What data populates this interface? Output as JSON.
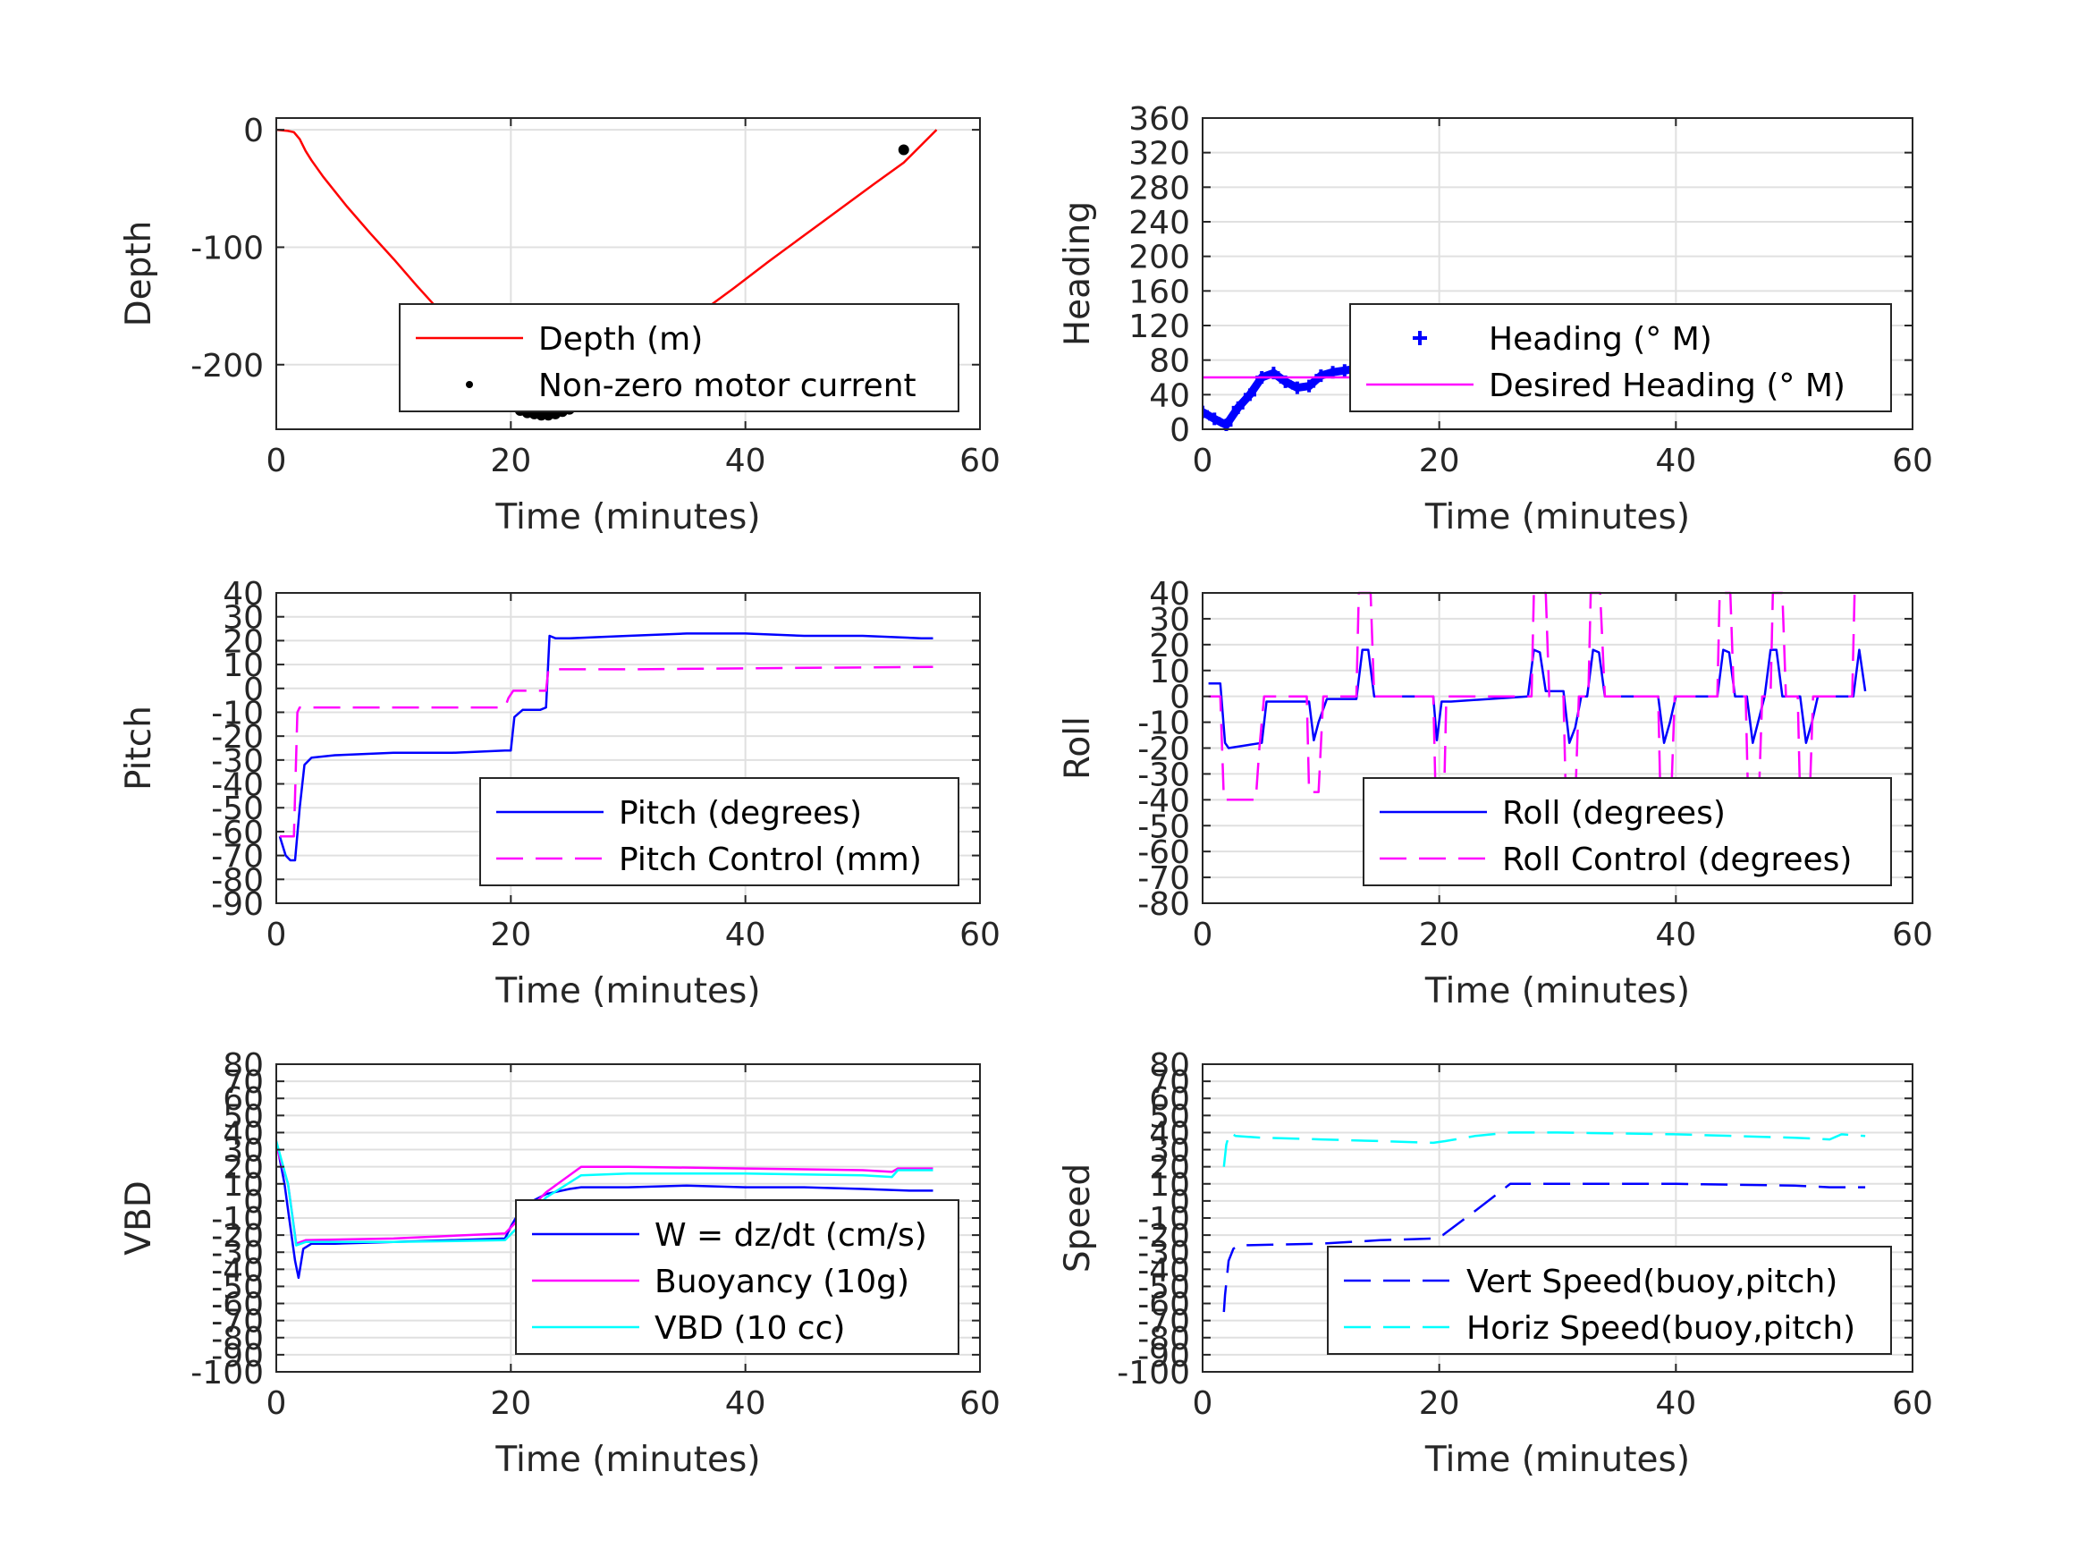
{
  "chart_data": [
    {
      "type": "line",
      "xlabel": "Time (minutes)",
      "ylabel": "Depth",
      "xlim": [
        0,
        60
      ],
      "ylim": [
        -255,
        10
      ],
      "xticks": [
        "0",
        "20",
        "40",
        "60"
      ],
      "yticks": [
        "0",
        "-100",
        "-200"
      ],
      "ytick_values": [
        0,
        -100,
        -200
      ],
      "grid": true,
      "legend_position": "bottom-right",
      "series": [
        {
          "name": "Depth (m)",
          "color": "#ff0000",
          "style": "solid",
          "x": [
            0,
            1.0,
            1.5,
            2.0,
            2.5,
            3.0,
            4.0,
            6.0,
            8.0,
            10.0,
            12.0,
            14.0,
            16.0,
            18.0,
            19.5,
            20.0,
            21.0,
            22.0,
            22.8,
            23.5,
            24.5,
            25.5,
            26.5,
            28.0,
            30.0,
            33.0,
            36.0,
            39.0,
            42.0,
            45.0,
            48.0,
            51.0,
            53.5,
            56.3
          ],
          "y": [
            0,
            -1,
            -2,
            -8,
            -18,
            -26,
            -40,
            -65,
            -88,
            -110,
            -133,
            -155,
            -177,
            -200,
            -217,
            -222,
            -232,
            -238,
            -240,
            -239,
            -236,
            -232,
            -226,
            -217,
            -202,
            -180,
            -157,
            -135,
            -112,
            -90,
            -68,
            -46,
            -28,
            0
          ]
        },
        {
          "name": "Non-zero motor current",
          "color": "#000000",
          "style": "markers",
          "x": [
            20.2,
            20.8,
            21.4,
            22.0,
            22.6,
            23.2,
            23.8,
            24.4,
            25.0,
            25.6,
            53.5
          ],
          "y": [
            -236,
            -239,
            -241,
            -242,
            -243,
            -243,
            -242,
            -240,
            -238,
            -235,
            -17
          ]
        }
      ]
    },
    {
      "type": "line",
      "xlabel": "Time (minutes)",
      "ylabel": "Heading",
      "xlim": [
        0,
        60
      ],
      "ylim": [
        0,
        360
      ],
      "xticks": [
        "0",
        "20",
        "40",
        "60"
      ],
      "yticks": [
        "0",
        "40",
        "80",
        "120",
        "160",
        "200",
        "240",
        "280",
        "320",
        "360"
      ],
      "ytick_values": [
        0,
        40,
        80,
        120,
        160,
        200,
        240,
        280,
        320,
        360
      ],
      "grid": true,
      "legend_position": "bottom-right",
      "series": [
        {
          "name": "Heading (° M)",
          "color": "#0000ff",
          "style": "markers",
          "x": [
            0,
            1,
            2,
            3,
            4,
            5,
            6,
            7,
            8,
            9,
            10,
            11,
            12,
            13,
            14,
            15,
            16,
            17,
            18,
            19,
            20,
            21,
            22,
            23,
            24,
            25,
            26,
            27,
            28,
            29,
            30,
            31,
            32,
            33,
            34,
            35,
            36,
            37,
            38,
            39,
            40,
            41,
            42,
            43,
            44,
            45,
            46,
            47,
            48,
            49,
            50,
            51,
            52,
            53,
            54,
            55,
            56
          ],
          "y": [
            20,
            12,
            5,
            25,
            40,
            60,
            65,
            55,
            48,
            50,
            62,
            66,
            68,
            70,
            62,
            55,
            50,
            48,
            46,
            48,
            52,
            58,
            64,
            68,
            62,
            55,
            50,
            54,
            60,
            66,
            70,
            72,
            62,
            52,
            48,
            56,
            65,
            72,
            60,
            48,
            42,
            58,
            72,
            76,
            50,
            36,
            55,
            78,
            80,
            60,
            46,
            56,
            70,
            65,
            45,
            60,
            75
          ]
        },
        {
          "name": "Desired Heading (° M)",
          "color": "#ff00ff",
          "style": "solid",
          "x": [
            0,
            56
          ],
          "y": [
            60,
            60
          ]
        }
      ]
    },
    {
      "type": "line",
      "xlabel": "Time (minutes)",
      "ylabel": "Pitch",
      "xlim": [
        0,
        60
      ],
      "ylim": [
        -90,
        40
      ],
      "xticks": [
        "0",
        "20",
        "40",
        "60"
      ],
      "yticks": [
        "-90",
        "-80",
        "-70",
        "-60",
        "-50",
        "-40",
        "-30",
        "-20",
        "-10",
        "0",
        "10",
        "20",
        "30",
        "40"
      ],
      "ytick_values": [
        -90,
        -80,
        -70,
        -60,
        -50,
        -40,
        -30,
        -20,
        -10,
        0,
        10,
        20,
        30,
        40
      ],
      "grid": true,
      "legend_position": "bottom-right",
      "series": [
        {
          "name": "Pitch (degrees)",
          "color": "#0000ff",
          "style": "solid",
          "x": [
            0.3,
            0.8,
            1.2,
            1.6,
            2.0,
            2.4,
            3.0,
            5.0,
            10.0,
            15.0,
            19.5,
            20.0,
            20.3,
            21.0,
            22.5,
            23.0,
            23.3,
            23.8,
            25.0,
            30.0,
            35.0,
            40.0,
            45.0,
            50.0,
            55.0,
            56.0
          ],
          "y": [
            -62,
            -70,
            -72,
            -72,
            -50,
            -32,
            -29,
            -28,
            -27,
            -27,
            -26,
            -26,
            -12,
            -9,
            -9,
            -8,
            22,
            21,
            21,
            22,
            23,
            23,
            22,
            22,
            21,
            21
          ]
        },
        {
          "name": "Pitch Control (mm)",
          "color": "#ff00ff",
          "style": "dashed",
          "x": [
            0.3,
            1.5,
            1.6,
            1.8,
            2.0,
            19.5,
            19.8,
            20.2,
            23.0,
            23.2,
            30.0,
            56.0
          ],
          "y": [
            -62,
            -62,
            -45,
            -10,
            -8,
            -8,
            -4,
            -1,
            -1,
            8,
            8,
            9
          ]
        }
      ]
    },
    {
      "type": "line",
      "xlabel": "Time (minutes)",
      "ylabel": "Roll",
      "xlim": [
        0,
        60
      ],
      "ylim": [
        -80,
        40
      ],
      "xticks": [
        "0",
        "20",
        "40",
        "60"
      ],
      "yticks": [
        "-80",
        "-70",
        "-60",
        "-50",
        "-40",
        "-30",
        "-20",
        "-10",
        "0",
        "10",
        "20",
        "30",
        "40"
      ],
      "ytick_values": [
        -80,
        -70,
        -60,
        -50,
        -40,
        -30,
        -20,
        -10,
        0,
        10,
        20,
        30,
        40
      ],
      "grid": true,
      "legend_position": "bottom-right",
      "series": [
        {
          "name": "Roll (degrees)",
          "color": "#0000ff",
          "style": "solid",
          "x": [
            0.5,
            1.5,
            1.9,
            2.2,
            5.0,
            5.4,
            6.0,
            9.0,
            9.4,
            9.8,
            10.5,
            13.0,
            13.5,
            14.0,
            14.5,
            19.5,
            19.8,
            20.2,
            21.0,
            27.5,
            28.0,
            28.5,
            29.0,
            30.5,
            31.0,
            31.5,
            32.0,
            32.5,
            33.0,
            33.5,
            34.0,
            38.5,
            39.0,
            39.5,
            40.0,
            43.5,
            44.0,
            44.5,
            45.0,
            46.0,
            46.5,
            47.5,
            48.0,
            48.5,
            49.0,
            50.5,
            51.0,
            51.5,
            52.0,
            55.0,
            55.5,
            56.0
          ],
          "y": [
            5,
            5,
            -18,
            -20,
            -18,
            -2,
            -2,
            -2,
            -17,
            -10,
            -1,
            -1,
            18,
            18,
            0,
            0,
            -17,
            -2,
            -2,
            0,
            18,
            17,
            2,
            2,
            -18,
            -12,
            0,
            0,
            18,
            17,
            0,
            0,
            -18,
            -10,
            0,
            0,
            18,
            17,
            0,
            0,
            -18,
            0,
            18,
            18,
            0,
            0,
            -18,
            -10,
            0,
            0,
            18,
            2
          ]
        },
        {
          "name": "Roll Control (degrees)",
          "color": "#ff00ff",
          "style": "dashed",
          "x": [
            0.5,
            1.5,
            1.8,
            4.5,
            4.8,
            5.2,
            8.8,
            9.0,
            9.8,
            10.2,
            13.0,
            13.2,
            14.2,
            14.5,
            19.5,
            19.7,
            20.4,
            20.6,
            27.8,
            28.0,
            29.0,
            29.3,
            30.5,
            30.7,
            31.5,
            31.8,
            32.6,
            32.8,
            33.6,
            34.0,
            38.5,
            38.7,
            39.6,
            39.9,
            43.5,
            43.7,
            44.6,
            44.9,
            45.9,
            46.1,
            47.0,
            47.3,
            48.0,
            48.2,
            49.0,
            49.3,
            50.3,
            50.5,
            51.3,
            51.6,
            54.9,
            55.1,
            56.0
          ],
          "y": [
            0,
            0,
            -40,
            -40,
            -20,
            0,
            0,
            -37,
            -37,
            0,
            0,
            40,
            40,
            0,
            0,
            -40,
            -40,
            0,
            0,
            40,
            40,
            0,
            0,
            -40,
            -40,
            0,
            0,
            40,
            40,
            0,
            0,
            -40,
            -40,
            0,
            0,
            40,
            40,
            0,
            0,
            -40,
            -40,
            0,
            0,
            40,
            40,
            0,
            0,
            -40,
            -40,
            0,
            0,
            40,
            40
          ]
        }
      ]
    },
    {
      "type": "line",
      "xlabel": "Time (minutes)",
      "ylabel": "VBD",
      "xlim": [
        0,
        60
      ],
      "ylim": [
        -100,
        80
      ],
      "xticks": [
        "0",
        "20",
        "40",
        "60"
      ],
      "yticks": [
        "-100",
        "-90",
        "-80",
        "-70",
        "-60",
        "-50",
        "-40",
        "-30",
        "-20",
        "-10",
        "0",
        "10",
        "20",
        "30",
        "40",
        "50",
        "60",
        "70",
        "80"
      ],
      "ytick_values": [
        -100,
        -90,
        -80,
        -70,
        -60,
        -50,
        -40,
        -30,
        -20,
        -10,
        0,
        10,
        20,
        30,
        40,
        50,
        60,
        70,
        80
      ],
      "grid": true,
      "legend_position": "bottom-right",
      "series": [
        {
          "name": "W = dz/dt (cm/s)",
          "color": "#0000ff",
          "style": "solid",
          "x": [
            0,
            0.7,
            1.2,
            1.6,
            1.9,
            2.3,
            3.0,
            5.0,
            10.0,
            15.0,
            19.5,
            20.0,
            21.0,
            23.0,
            25.0,
            26.0,
            27.0,
            30.0,
            35.0,
            40.0,
            45.0,
            50.0,
            54.0,
            56.0
          ],
          "y": [
            35,
            10,
            -15,
            -35,
            -45,
            -28,
            -25,
            -25,
            -24,
            -23,
            -22,
            -15,
            -3,
            4,
            7,
            8,
            8,
            8,
            9,
            8,
            8,
            7,
            6,
            6
          ]
        },
        {
          "name": "Buoyancy (10g)",
          "color": "#ff00ff",
          "style": "solid",
          "x": [
            0,
            1.0,
            1.7,
            2.5,
            10.0,
            19.5,
            20.5,
            23.0,
            26.0,
            30.0,
            40.0,
            50.0,
            52.5,
            53.0,
            56.0
          ],
          "y": [
            32,
            10,
            -25,
            -23,
            -22,
            -19,
            -12,
            5,
            20,
            20,
            19,
            18,
            17,
            19,
            19
          ]
        },
        {
          "name": "VBD (10 cc)",
          "color": "#00ffff",
          "style": "solid",
          "x": [
            0,
            1.0,
            1.7,
            2.5,
            10.0,
            19.5,
            20.5,
            23.0,
            26.0,
            30.0,
            40.0,
            50.0,
            52.5,
            53.0,
            56.0
          ],
          "y": [
            35,
            10,
            -26,
            -24,
            -24,
            -23,
            -16,
            2,
            15,
            16,
            16,
            15,
            14,
            18,
            18
          ]
        }
      ]
    },
    {
      "type": "line",
      "xlabel": "Time (minutes)",
      "ylabel": "Speed",
      "xlim": [
        0,
        60
      ],
      "ylim": [
        -100,
        80
      ],
      "xticks": [
        "0",
        "20",
        "40",
        "60"
      ],
      "yticks": [
        "-100",
        "-90",
        "-80",
        "-70",
        "-60",
        "-50",
        "-40",
        "-30",
        "-20",
        "-10",
        "0",
        "10",
        "20",
        "30",
        "40",
        "50",
        "60",
        "70",
        "80"
      ],
      "ytick_values": [
        -100,
        -90,
        -80,
        -70,
        -60,
        -50,
        -40,
        -30,
        -20,
        -10,
        0,
        10,
        20,
        30,
        40,
        50,
        60,
        70,
        80
      ],
      "grid": true,
      "legend_position": "bottom-right",
      "series": [
        {
          "name": "Vert Speed(buoy,pitch)",
          "color": "#0000ff",
          "style": "dashed",
          "x": [
            1.8,
            1.9,
            2.2,
            2.6,
            3.0,
            10.0,
            15.0,
            19.5,
            20.3,
            23.0,
            26.0,
            30.0,
            40.0,
            50.0,
            53.0,
            56.0
          ],
          "y": [
            -65,
            -55,
            -35,
            -28,
            -26,
            -25,
            -23,
            -22,
            -20,
            -6,
            10,
            10,
            10,
            9,
            8,
            8
          ]
        },
        {
          "name": "Horiz Speed(buoy,pitch)",
          "color": "#00ffff",
          "style": "dashed",
          "x": [
            1.8,
            2.0,
            2.3,
            2.8,
            5.0,
            10.0,
            15.0,
            19.5,
            20.5,
            23.0,
            26.0,
            30.0,
            40.0,
            50.0,
            53.0,
            54.0,
            56.0
          ],
          "y": [
            20,
            33,
            40,
            38,
            37,
            36,
            35,
            34,
            35,
            38,
            40,
            40,
            39,
            37,
            36,
            39,
            38
          ]
        }
      ]
    }
  ]
}
